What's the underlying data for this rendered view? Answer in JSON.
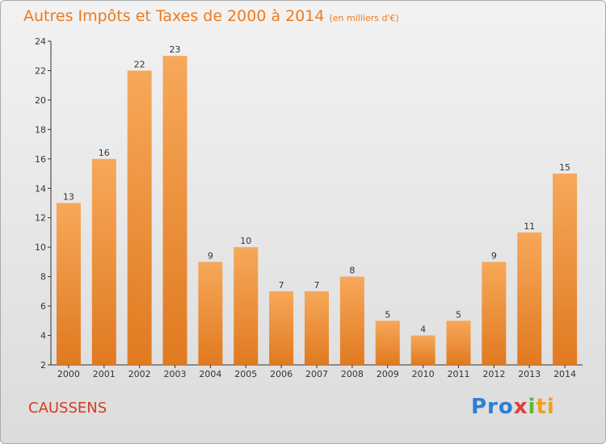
{
  "chart_data": {
    "type": "bar",
    "title": "Autres Impôts et Taxes de 2000 à 2014",
    "subtitle": "(en milliers d'€)",
    "categories": [
      "2000",
      "2001",
      "2002",
      "2003",
      "2004",
      "2005",
      "2006",
      "2007",
      "2008",
      "2009",
      "2010",
      "2011",
      "2012",
      "2013",
      "2014"
    ],
    "values": [
      13,
      16,
      22,
      23,
      9,
      10,
      7,
      7,
      8,
      5,
      4,
      5,
      9,
      11,
      15
    ],
    "ylim": [
      2,
      24
    ],
    "yticks": [
      2,
      4,
      6,
      8,
      10,
      12,
      14,
      16,
      18,
      20,
      22,
      24
    ],
    "grid": false,
    "bar_color_light": "#f7a85a",
    "bar_color_dark": "#e07a20"
  },
  "location": "CAUSSENS",
  "brand": {
    "part1": "Pro",
    "part2": "x",
    "part3": "i",
    "part4": "ti"
  }
}
